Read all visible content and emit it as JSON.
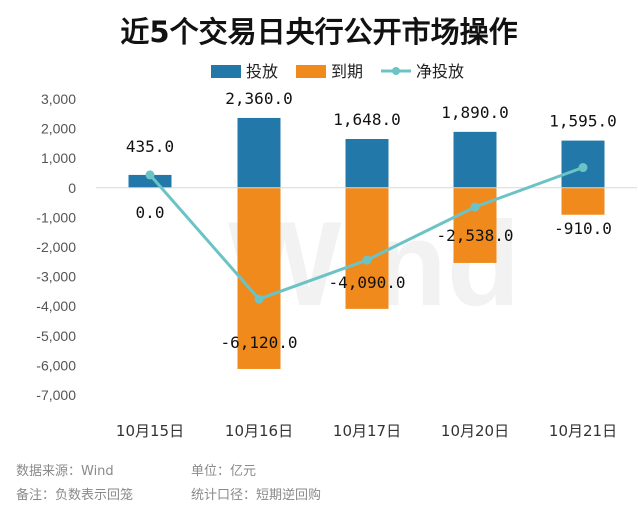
{
  "chart_data": {
    "type": "bar",
    "title": "近5个交易日央行公开市场操作",
    "categories": [
      "10月15日",
      "10月16日",
      "10月17日",
      "10月20日",
      "10月21日"
    ],
    "series": [
      {
        "name": "投放",
        "values": [
          435.0,
          2360.0,
          1648.0,
          1890.0,
          1595.0
        ],
        "color": "#2278a8",
        "labels": [
          "435.0",
          "2,360.0",
          "1,648.0",
          "1,890.0",
          "1,595.0"
        ]
      },
      {
        "name": "到期",
        "values": [
          0.0,
          -6120.0,
          -4090.0,
          -2538.0,
          -910.0
        ],
        "color": "#f08a1c",
        "labels": [
          "0.0",
          "-6,120.0",
          "-4,090.0",
          "-2,538.0",
          "-910.0"
        ]
      },
      {
        "name": "净投放",
        "type": "line",
        "values": [
          435.0,
          -3760.0,
          -2442.0,
          -648.0,
          685.0
        ],
        "color": "#6cc3c6"
      }
    ],
    "yticks": [
      "3,000",
      "2,000",
      "1,000",
      "0",
      "-1,000",
      "-2,000",
      "-3,000",
      "-4,000",
      "-5,000",
      "-6,000",
      "-7,000"
    ],
    "ylim": [
      -7000,
      3000
    ],
    "legend_position": "top",
    "grid": false,
    "watermark": "Wind"
  },
  "footer": {
    "source": "数据来源：Wind",
    "unit": "单位：亿元",
    "note": "备注：负数表示回笼",
    "scope": "统计口径：短期逆回购"
  }
}
